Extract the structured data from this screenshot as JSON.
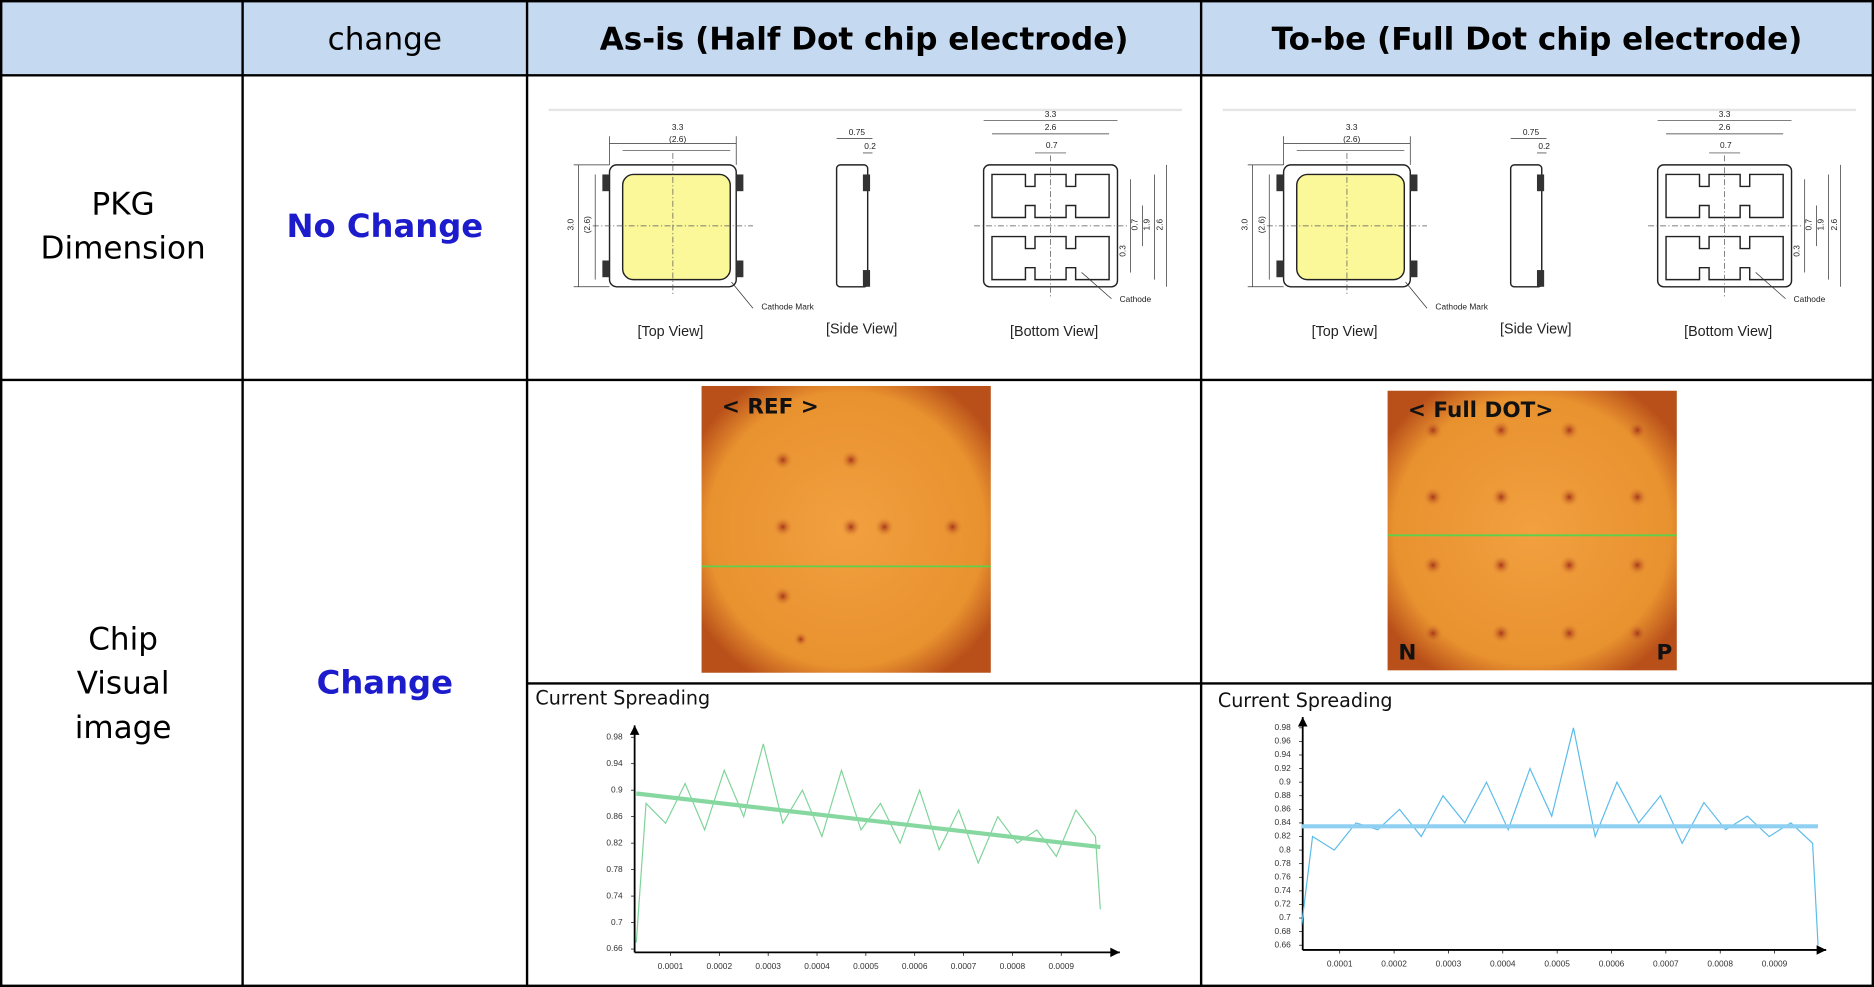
{
  "header": {
    "change": "change",
    "as_is": "As-is (Half Dot chip electrode)",
    "to_be": "To-be (Full Dot chip electrode)"
  },
  "rows": [
    {
      "label_lines": [
        "PKG",
        "Dimension"
      ],
      "change": "No Change"
    },
    {
      "label_lines": [
        "Chip",
        "Visual",
        "image"
      ],
      "change": "Change"
    }
  ],
  "drawing": {
    "top_width": "3.3",
    "top_inner": "(2.6)",
    "top_height": "3.0",
    "top_inner_height": "(2.6)",
    "side_width": "0.75",
    "side_pad": "0.2",
    "bottom_width": "3.3",
    "bottom_inner": "2.6",
    "bottom_gap": "0.7",
    "bottom_r1": "0.3",
    "bottom_r2": "0.7",
    "bottom_r3": "1.9",
    "bottom_r4": "2.6",
    "cathode_mark": "Cathode Mark",
    "cathode": "Cathode",
    "top_view": "[Top View]",
    "side_view": "[Side View]",
    "bottom_view": "[Bottom View]"
  },
  "images": {
    "as_is_label": "< REF >",
    "to_be_label": "< Full DOT>",
    "n": "N",
    "p": "P"
  },
  "charts": [
    {
      "type": "line",
      "title": "Current Spreading",
      "color": "#7fd49a",
      "trend_color": "#86d8a0",
      "x": [
        3e-05,
        5e-05,
        9e-05,
        0.00013,
        0.00017,
        0.00021,
        0.00025,
        0.00029,
        0.00033,
        0.00037,
        0.00041,
        0.00045,
        0.00049,
        0.00053,
        0.00057,
        0.00061,
        0.00065,
        0.00069,
        0.00073,
        0.00077,
        0.00081,
        0.00085,
        0.00089,
        0.00093,
        0.00097,
        0.00098
      ],
      "values": [
        0.67,
        0.88,
        0.85,
        0.91,
        0.84,
        0.93,
        0.86,
        0.97,
        0.85,
        0.9,
        0.83,
        0.93,
        0.84,
        0.88,
        0.82,
        0.9,
        0.81,
        0.87,
        0.79,
        0.86,
        0.82,
        0.84,
        0.8,
        0.87,
        0.83,
        0.72
      ],
      "trend": {
        "x": [
          3e-05,
          0.00098
        ],
        "y": [
          0.895,
          0.814
        ]
      },
      "xlim": [
        2.66e-05,
        0.00102
      ],
      "ylim": [
        0.655,
        0.998
      ],
      "xticks": [
        0.0001,
        0.0002,
        0.0003,
        0.0004,
        0.0005,
        0.0006,
        0.0007,
        0.0008,
        0.0009
      ],
      "yticks": [
        0.66,
        0.7,
        0.74,
        0.78,
        0.82,
        0.86,
        0.9,
        0.94,
        0.98
      ]
    },
    {
      "type": "line",
      "title": "Current Spreading",
      "color": "#5bbcea",
      "trend_color": "#8fd0f2",
      "x": [
        3e-05,
        5e-05,
        9e-05,
        0.00013,
        0.00017,
        0.00021,
        0.00025,
        0.00029,
        0.00033,
        0.00037,
        0.00041,
        0.00045,
        0.00049,
        0.00053,
        0.00057,
        0.00061,
        0.00065,
        0.00069,
        0.00073,
        0.00077,
        0.00081,
        0.00085,
        0.00089,
        0.00093,
        0.00097,
        0.00098
      ],
      "values": [
        0.69,
        0.82,
        0.8,
        0.84,
        0.83,
        0.86,
        0.82,
        0.88,
        0.84,
        0.9,
        0.83,
        0.92,
        0.85,
        0.98,
        0.82,
        0.9,
        0.84,
        0.88,
        0.81,
        0.87,
        0.83,
        0.85,
        0.82,
        0.84,
        0.81,
        0.66
      ],
      "trend": {
        "x": [
          3e-05,
          0.00098
        ],
        "y": [
          0.835,
          0.835
        ]
      },
      "xlim": [
        3.19e-05,
        0.000995
      ],
      "ylim": [
        0.653,
        0.996
      ],
      "xticks": [
        0.0001,
        0.0002,
        0.0003,
        0.0004,
        0.0005,
        0.0006,
        0.0007,
        0.0008,
        0.0009
      ],
      "yticks": [
        0.66,
        0.68,
        0.7,
        0.72,
        0.74,
        0.76,
        0.78,
        0.8,
        0.82,
        0.84,
        0.86,
        0.88,
        0.9,
        0.92,
        0.94,
        0.96,
        0.98
      ]
    }
  ]
}
